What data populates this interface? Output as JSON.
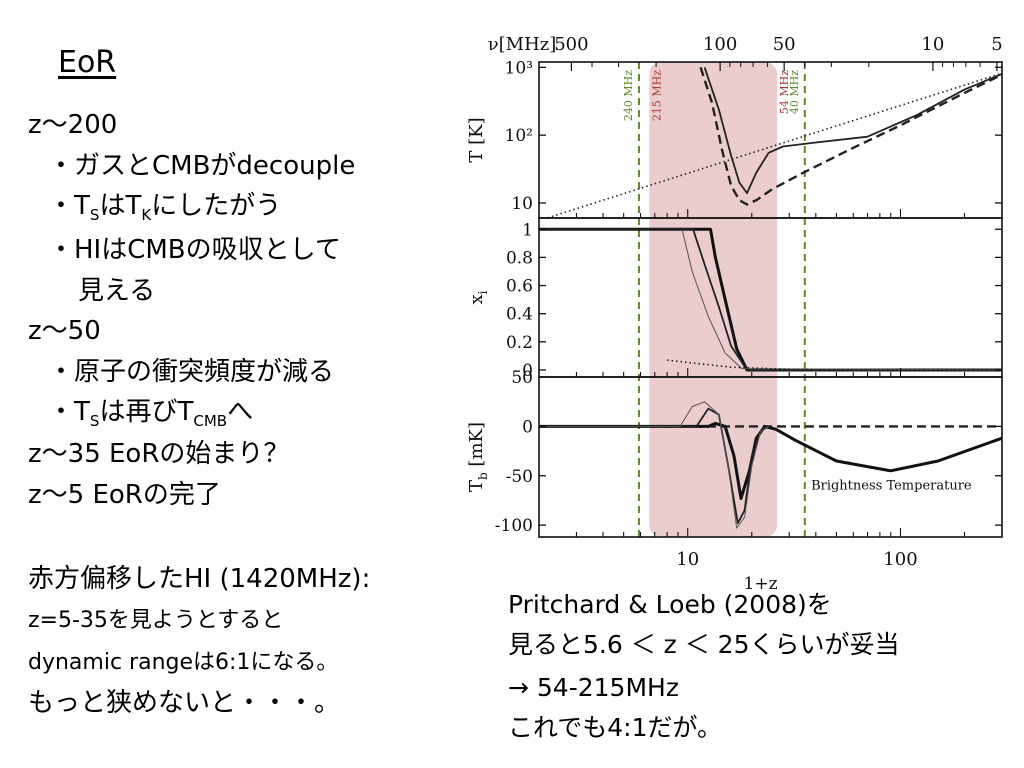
{
  "slide": {
    "title": "EoR",
    "left_lines": [
      "z～200",
      "・ガスとCMBがdecouple",
      "・H",
      "・HIはCMBの吸収として",
      "見える",
      "z～50",
      "・原子の衝突頻度が減る",
      "z～35 EoRの始まり？",
      "z～5 EoRの完了"
    ],
    "ts_tk_line": {
      "bullet": "・",
      "T1": "T",
      "s1": "S",
      "mid": "は",
      "T2": "T",
      "s2": "K",
      "end": "にしたがう"
    },
    "ts_tcmb_line": {
      "bullet": "・",
      "T1": "T",
      "s1": "S",
      "mid": "は再び",
      "T2": "T",
      "s2": "CMB",
      "end": "へ"
    },
    "bottom_left": [
      "赤方偏移したHI (1420MHz):",
      "z=5-35を見ようとすると",
      "dynamic rangeは6:1になる。",
      "もっと狭めないと・・・。"
    ],
    "bottom_right": [
      "Pritchard & Loeb (2008)を",
      "見ると5.6 ＜ z ＜ 25くらいが妥当",
      "→ 54-215MHz",
      "これでも4:1だが。"
    ]
  },
  "chart_data": {
    "type": "line",
    "x_axis": {
      "label": "1+z",
      "scale": "log",
      "range": [
        2,
        300
      ],
      "ticks": [
        10,
        100
      ],
      "tick_labels": [
        "10",
        "100"
      ]
    },
    "top_axis": {
      "label": "ν[MHz]",
      "tick_labels": [
        "500",
        "100",
        "50",
        "10",
        "5"
      ],
      "values_mhz": [
        500,
        100,
        50,
        10,
        5
      ]
    },
    "vertical_lines": [
      {
        "label": "240 MHz",
        "x": 5.9,
        "color": "#5a8a2a",
        "style": "dashed"
      },
      {
        "label": "215 MHz",
        "x": 6.6,
        "color": "#a33a3a"
      },
      {
        "label": "54 MHz",
        "x": 26.3,
        "color": "#a33a3a"
      },
      {
        "label": "40 MHz",
        "x": 35.5,
        "color": "#5a8a2a",
        "style": "dashed"
      }
    ],
    "shaded_band": {
      "x_range": [
        6.6,
        26.3
      ],
      "color": "#e8c4c4"
    },
    "panels": [
      {
        "ylabel": "T [K]",
        "yscale": "log",
        "ylim": [
          6,
          1200
        ],
        "tick_labels": [
          "10",
          "10²",
          "10³"
        ],
        "tick_values": [
          10,
          100,
          1000
        ],
        "series": [
          {
            "style": "dotted",
            "x": [
              2,
              300
            ],
            "y": [
              5.5,
              820
            ]
          },
          {
            "style": "solid",
            "x": [
              12,
              14,
              16,
              17.5,
              19,
              21,
              24,
              28,
              40,
              70,
              120,
              200,
              300
            ],
            "y": [
              1000,
              240,
              50,
              20,
              14,
              28,
              55,
              68,
              78,
              95,
              200,
              470,
              800
            ]
          },
          {
            "style": "dashed",
            "x": [
              11.5,
              13,
              14.5,
              16,
              17.5,
              19,
              21,
              25,
              35,
              60,
              100,
              200,
              300
            ],
            "y": [
              1000,
              300,
              60,
              18,
              11,
              9.5,
              11,
              16,
              28,
              65,
              140,
              420,
              780
            ]
          }
        ]
      },
      {
        "ylabel": "x",
        "ylabel_sub": "i",
        "yscale": "linear",
        "ylim": [
          -0.05,
          1.08
        ],
        "tick_labels": [
          "0",
          "0.2",
          "0.4",
          "0.6",
          "0.8",
          "1"
        ],
        "tick_values": [
          0,
          0.2,
          0.4,
          0.6,
          0.8,
          1
        ],
        "series": [
          {
            "style": "solid-thick",
            "x": [
              2,
              12.8,
              13.5,
              15,
              17,
              19,
              300
            ],
            "y": [
              1,
              1,
              0.8,
              0.5,
              0.15,
              0,
              0
            ]
          },
          {
            "style": "solid",
            "x": [
              2,
              10.6,
              12,
              14,
              16,
              19,
              300
            ],
            "y": [
              1,
              1,
              0.75,
              0.45,
              0.17,
              0,
              0
            ]
          },
          {
            "style": "solid-thin",
            "x": [
              9.4,
              10.5,
              12.5,
              15,
              18,
              300
            ],
            "y": [
              1,
              0.7,
              0.38,
              0.12,
              0.01,
              0
            ]
          },
          {
            "style": "dotted",
            "x": [
              8,
              12,
              16,
              30,
              300
            ],
            "y": [
              0.07,
              0.04,
              0.02,
              0.005,
              0
            ]
          }
        ]
      },
      {
        "ylabel": "T",
        "ylabel_sub": "b",
        "ylabel_unit": "[mK]",
        "yscale": "linear",
        "ylim": [
          -112,
          50
        ],
        "tick_labels": [
          "-100",
          "-50",
          "0",
          "50"
        ],
        "tick_values": [
          -100,
          -50,
          0,
          50
        ],
        "annotation": "Brightness Temperature",
        "series": [
          {
            "style": "dashed",
            "x": [
              2,
              300
            ],
            "y": [
              0,
              0
            ]
          },
          {
            "style": "solid-thick",
            "x": [
              2,
              12.5,
              13.5,
              15,
              16.5,
              17.8,
              19.5,
              21,
              23,
              26,
              32,
              50,
              90,
              150,
              300
            ],
            "y": [
              0,
              0,
              3,
              0,
              -30,
              -73,
              -45,
              -12,
              0,
              -3,
              -14,
              -35,
              -45,
              -35,
              -12
            ]
          },
          {
            "style": "solid",
            "x": [
              2,
              11,
              12.5,
              14,
              15.5,
              17.2,
              18.5,
              20,
              22,
              24
            ],
            "y": [
              0,
              0,
              18,
              12,
              -40,
              -98,
              -85,
              -30,
              -5,
              0
            ]
          },
          {
            "style": "solid-thin",
            "x": [
              2,
              9.2,
              10.5,
              12,
              14,
              15.5,
              17,
              18.5,
              20,
              22,
              24
            ],
            "y": [
              0,
              0,
              20,
              25,
              12,
              -40,
              -103,
              -92,
              -40,
              -5,
              0
            ]
          }
        ]
      }
    ]
  }
}
